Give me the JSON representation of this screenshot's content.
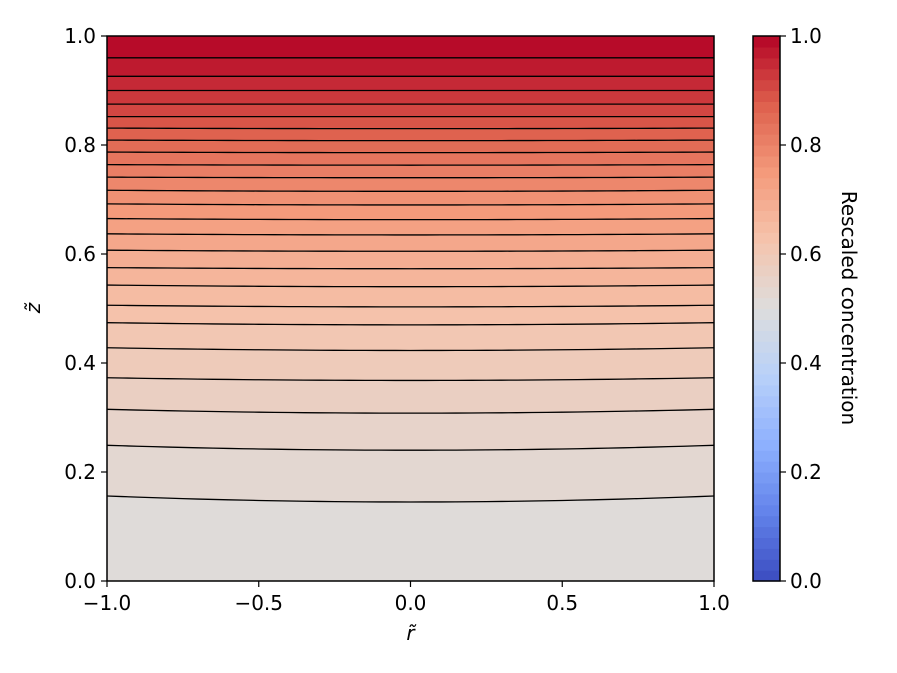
{
  "chart_data": {
    "type": "heatmap",
    "subtype": "filled-contour",
    "title": "",
    "xlabel": "r̃",
    "ylabel": "z̃",
    "xlim": [
      -1.0,
      1.0
    ],
    "ylim": [
      0.0,
      1.0
    ],
    "x_ticks": [
      -1.0,
      -0.5,
      0.0,
      0.5,
      1.0
    ],
    "x_tick_labels": [
      "−1.0",
      "−0.5",
      "0.0",
      "0.5",
      "1.0"
    ],
    "y_ticks": [
      0.0,
      0.2,
      0.4,
      0.6,
      0.8,
      1.0
    ],
    "y_tick_labels": [
      "0.0",
      "0.2",
      "0.4",
      "0.6",
      "0.8",
      "1.0"
    ],
    "grid": false,
    "colormap": "coolwarm",
    "contour_line_color": "#000000",
    "colorbar": {
      "label": "Rescaled concentration",
      "range": [
        0.0,
        1.0
      ],
      "ticks": [
        0.0,
        0.2,
        0.4,
        0.6,
        0.8,
        1.0
      ],
      "tick_labels": [
        "0.0",
        "0.2",
        "0.4",
        "0.6",
        "0.8",
        "1.0"
      ],
      "levels": 50
    },
    "contour_levels": [
      0.52,
      0.54,
      0.56,
      0.58,
      0.6,
      0.62,
      0.64,
      0.66,
      0.68,
      0.7,
      0.72,
      0.74,
      0.76,
      0.78,
      0.8,
      0.82,
      0.84,
      0.86,
      0.88,
      0.9,
      0.92,
      0.94,
      0.96,
      0.98
    ],
    "contour_lines": [
      {
        "level": 0.52,
        "z_at_r0": 0.145,
        "z_at_edge": 0.156
      },
      {
        "level": 0.54,
        "z_at_r0": 0.24,
        "z_at_edge": 0.249
      },
      {
        "level": 0.56,
        "z_at_r0": 0.308,
        "z_at_edge": 0.315
      },
      {
        "level": 0.58,
        "z_at_r0": 0.368,
        "z_at_edge": 0.373
      },
      {
        "level": 0.6,
        "z_at_r0": 0.423,
        "z_at_edge": 0.428
      },
      {
        "level": 0.62,
        "z_at_r0": 0.47,
        "z_at_edge": 0.474
      },
      {
        "level": 0.64,
        "z_at_r0": 0.503,
        "z_at_edge": 0.506
      },
      {
        "level": 0.66,
        "z_at_r0": 0.54,
        "z_at_edge": 0.543
      },
      {
        "level": 0.68,
        "z_at_r0": 0.573,
        "z_at_edge": 0.575
      },
      {
        "level": 0.7,
        "z_at_r0": 0.605,
        "z_at_edge": 0.607
      },
      {
        "level": 0.72,
        "z_at_r0": 0.635,
        "z_at_edge": 0.637
      },
      {
        "level": 0.74,
        "z_at_r0": 0.663,
        "z_at_edge": 0.665
      },
      {
        "level": 0.76,
        "z_at_r0": 0.69,
        "z_at_edge": 0.692
      },
      {
        "level": 0.78,
        "z_at_r0": 0.715,
        "z_at_edge": 0.717
      },
      {
        "level": 0.8,
        "z_at_r0": 0.74,
        "z_at_edge": 0.741
      },
      {
        "level": 0.82,
        "z_at_r0": 0.763,
        "z_at_edge": 0.764
      },
      {
        "level": 0.84,
        "z_at_r0": 0.786,
        "z_at_edge": 0.787
      },
      {
        "level": 0.86,
        "z_at_r0": 0.808,
        "z_at_edge": 0.809
      },
      {
        "level": 0.88,
        "z_at_r0": 0.83,
        "z_at_edge": 0.831
      },
      {
        "level": 0.9,
        "z_at_r0": 0.852,
        "z_at_edge": 0.852
      },
      {
        "level": 0.92,
        "z_at_r0": 0.875,
        "z_at_edge": 0.875
      },
      {
        "level": 0.94,
        "z_at_r0": 0.9,
        "z_at_edge": 0.9
      },
      {
        "level": 0.96,
        "z_at_r0": 0.926,
        "z_at_edge": 0.926
      },
      {
        "level": 0.98,
        "z_at_r0": 0.96,
        "z_at_edge": 0.96
      }
    ]
  }
}
